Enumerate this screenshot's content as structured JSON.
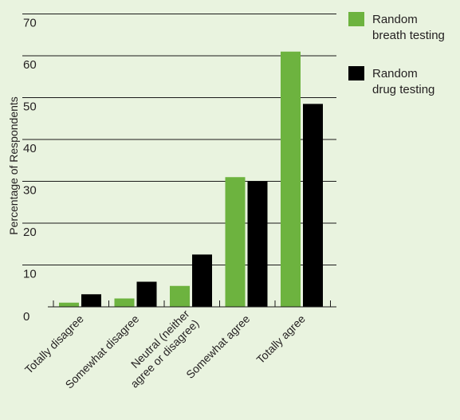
{
  "chart_data": {
    "type": "bar",
    "ylabel": "Percentage of Respondents",
    "ylim": [
      0,
      70
    ],
    "yticks": [
      0,
      10,
      20,
      30,
      40,
      50,
      60,
      70
    ],
    "grid": true,
    "legend_position": "top-right",
    "categories": [
      [
        "Totally disagree"
      ],
      [
        "Somewhat disagree"
      ],
      [
        "Neutral (neither",
        "agree or disagree)"
      ],
      [
        "Somewhat agree"
      ],
      [
        "Totally agree"
      ]
    ],
    "series": [
      {
        "name": [
          "Random",
          "breath testing"
        ],
        "color": "#6db33f",
        "values": [
          1,
          2,
          5,
          31,
          61
        ]
      },
      {
        "name": [
          "Random",
          "drug testing"
        ],
        "color": "#000000",
        "values": [
          3,
          6,
          12.5,
          30,
          48.5
        ]
      }
    ]
  }
}
